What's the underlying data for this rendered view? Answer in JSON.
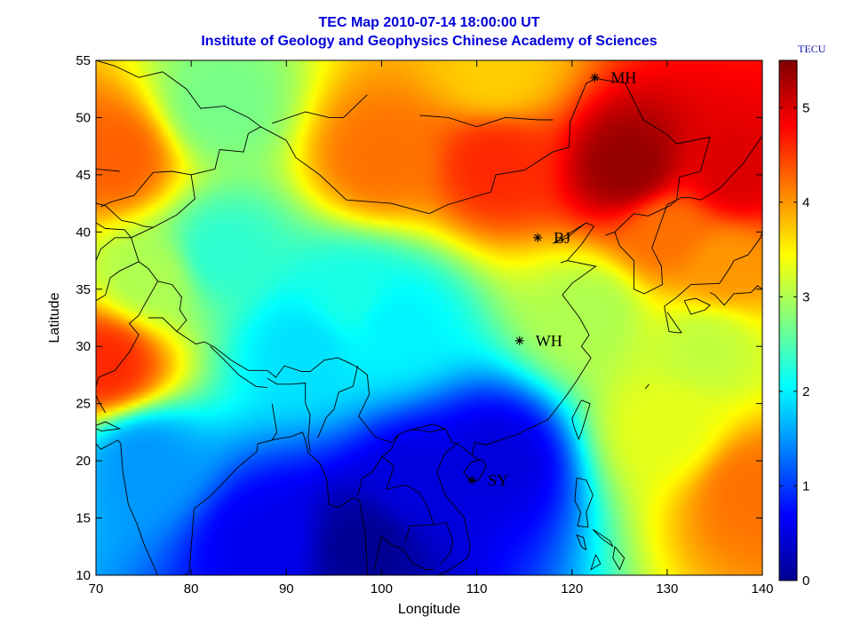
{
  "chart_data": {
    "type": "heatmap",
    "title": "TEC Map 2010-07-14 18:00:00 UT",
    "subtitle": "Institute of Geology and Geophysics Chinese Academy of Sciences",
    "xlabel": "Longitude",
    "ylabel": "Latitude",
    "xlim": [
      70,
      140
    ],
    "ylim": [
      10,
      55
    ],
    "x_ticks": [
      "70",
      "80",
      "90",
      "100",
      "110",
      "120",
      "130",
      "140"
    ],
    "y_ticks": [
      "10",
      "15",
      "20",
      "25",
      "30",
      "35",
      "40",
      "45",
      "50",
      "55"
    ],
    "colorbar": {
      "label": "TECU",
      "range": [
        0,
        5.5
      ],
      "ticks": [
        "0",
        "1",
        "2",
        "3",
        "4",
        "5"
      ],
      "colormap": "jet"
    },
    "grid": false,
    "stations": [
      {
        "name": "MH",
        "lon": 122.4,
        "lat": 53.5
      },
      {
        "name": "BJ",
        "lon": 116.4,
        "lat": 39.5
      },
      {
        "name": "WH",
        "lon": 114.5,
        "lat": 30.5
      },
      {
        "name": "SY",
        "lon": 109.5,
        "lat": 18.3
      }
    ],
    "tec_features": [
      {
        "lon": 112,
        "lat": 46,
        "value": 4.6
      },
      {
        "lon": 126,
        "lat": 45.5,
        "value": 5.4
      },
      {
        "lon": 137,
        "lat": 45,
        "value": 5.0
      },
      {
        "lon": 100,
        "lat": 46.5,
        "value": 4.2
      },
      {
        "lon": 130,
        "lat": 40,
        "value": 4.2
      },
      {
        "lon": 136,
        "lat": 37,
        "value": 4.0
      },
      {
        "lon": 72,
        "lat": 46.5,
        "value": 4.3
      },
      {
        "lon": 71,
        "lat": 28.5,
        "value": 4.6
      },
      {
        "lon": 139,
        "lat": 17.5,
        "value": 4.2
      },
      {
        "lon": 130,
        "lat": 23,
        "value": 3.3
      },
      {
        "lon": 112,
        "lat": 54,
        "value": 3.7
      },
      {
        "lon": 98,
        "lat": 12.5,
        "value": 0.1
      },
      {
        "lon": 88,
        "lat": 13,
        "value": 0.6
      },
      {
        "lon": 112,
        "lat": 20,
        "value": 0.5
      },
      {
        "lon": 104,
        "lat": 18,
        "value": 0.5
      },
      {
        "lon": 92,
        "lat": 30,
        "value": 1.9
      },
      {
        "lon": 101,
        "lat": 32,
        "value": 2.0
      },
      {
        "lon": 83,
        "lat": 38,
        "value": 2.3
      },
      {
        "lon": 97,
        "lat": 34,
        "value": 2.2
      },
      {
        "lon": 122,
        "lat": 33,
        "value": 3.0
      },
      {
        "lon": 134,
        "lat": 30,
        "value": 3.1
      },
      {
        "lon": 76,
        "lat": 36,
        "value": 3.0
      },
      {
        "lon": 75,
        "lat": 20,
        "value": 1.5
      },
      {
        "lon": 83,
        "lat": 51,
        "value": 2.7
      }
    ]
  },
  "colors": {
    "title": "#0000dd",
    "unit_label": "#1010aa",
    "coastline": "#000000"
  }
}
